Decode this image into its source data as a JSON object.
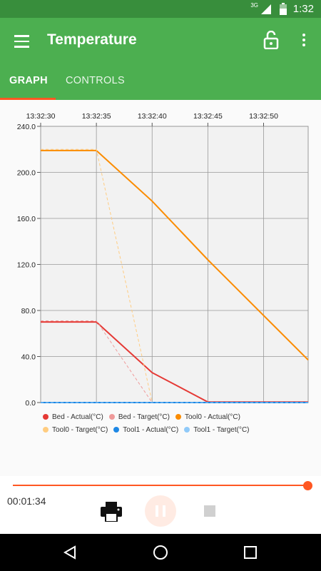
{
  "status_bar": {
    "network": "3G",
    "time": "1:32"
  },
  "app_bar": {
    "title": "Temperature",
    "tabs": [
      {
        "label": "GRAPH"
      },
      {
        "label": "CONTROLS"
      }
    ]
  },
  "chart_data": {
    "type": "line",
    "x_ticks": [
      "13:32:30",
      "13:32:35",
      "13:32:40",
      "13:32:45",
      "13:32:50"
    ],
    "y_ticks": [
      "240.0",
      "200.0",
      "160.0",
      "120.0",
      "80.0",
      "40.0",
      "0.0"
    ],
    "xlim": [
      "13:32:30",
      "13:32:54"
    ],
    "ylim": [
      0,
      240
    ],
    "grid": true,
    "legend_position": "bottom",
    "x": [
      "13:32:30",
      "13:32:35",
      "13:32:40",
      "13:32:45",
      "13:32:54"
    ],
    "series": [
      {
        "name": "Bed - Actual(°C)",
        "color": "#e53935",
        "style": "solid",
        "values": [
          70,
          70,
          26,
          0.5,
          0.5
        ]
      },
      {
        "name": "Bed - Target(°C)",
        "color": "#ef9a9a",
        "style": "dashed",
        "values": [
          71,
          71,
          0,
          0,
          0
        ]
      },
      {
        "name": "Tool0 - Actual(°C)",
        "color": "#fb8c00",
        "style": "solid",
        "values": [
          219,
          219,
          175,
          124,
          37
        ]
      },
      {
        "name": "Tool0 - Target(°C)",
        "color": "#ffcc80",
        "style": "dashed",
        "values": [
          220,
          220,
          0,
          0,
          0
        ]
      },
      {
        "name": "Tool1 - Actual(°C)",
        "color": "#1e88e5",
        "style": "solid",
        "values": [
          0,
          0,
          0,
          0,
          0
        ]
      },
      {
        "name": "Tool1 - Target(°C)",
        "color": "#90caf9",
        "style": "dashed",
        "values": [
          0,
          0,
          0,
          0,
          0
        ]
      }
    ]
  },
  "player": {
    "elapsed": "00:01:34",
    "progress": 1.0
  }
}
